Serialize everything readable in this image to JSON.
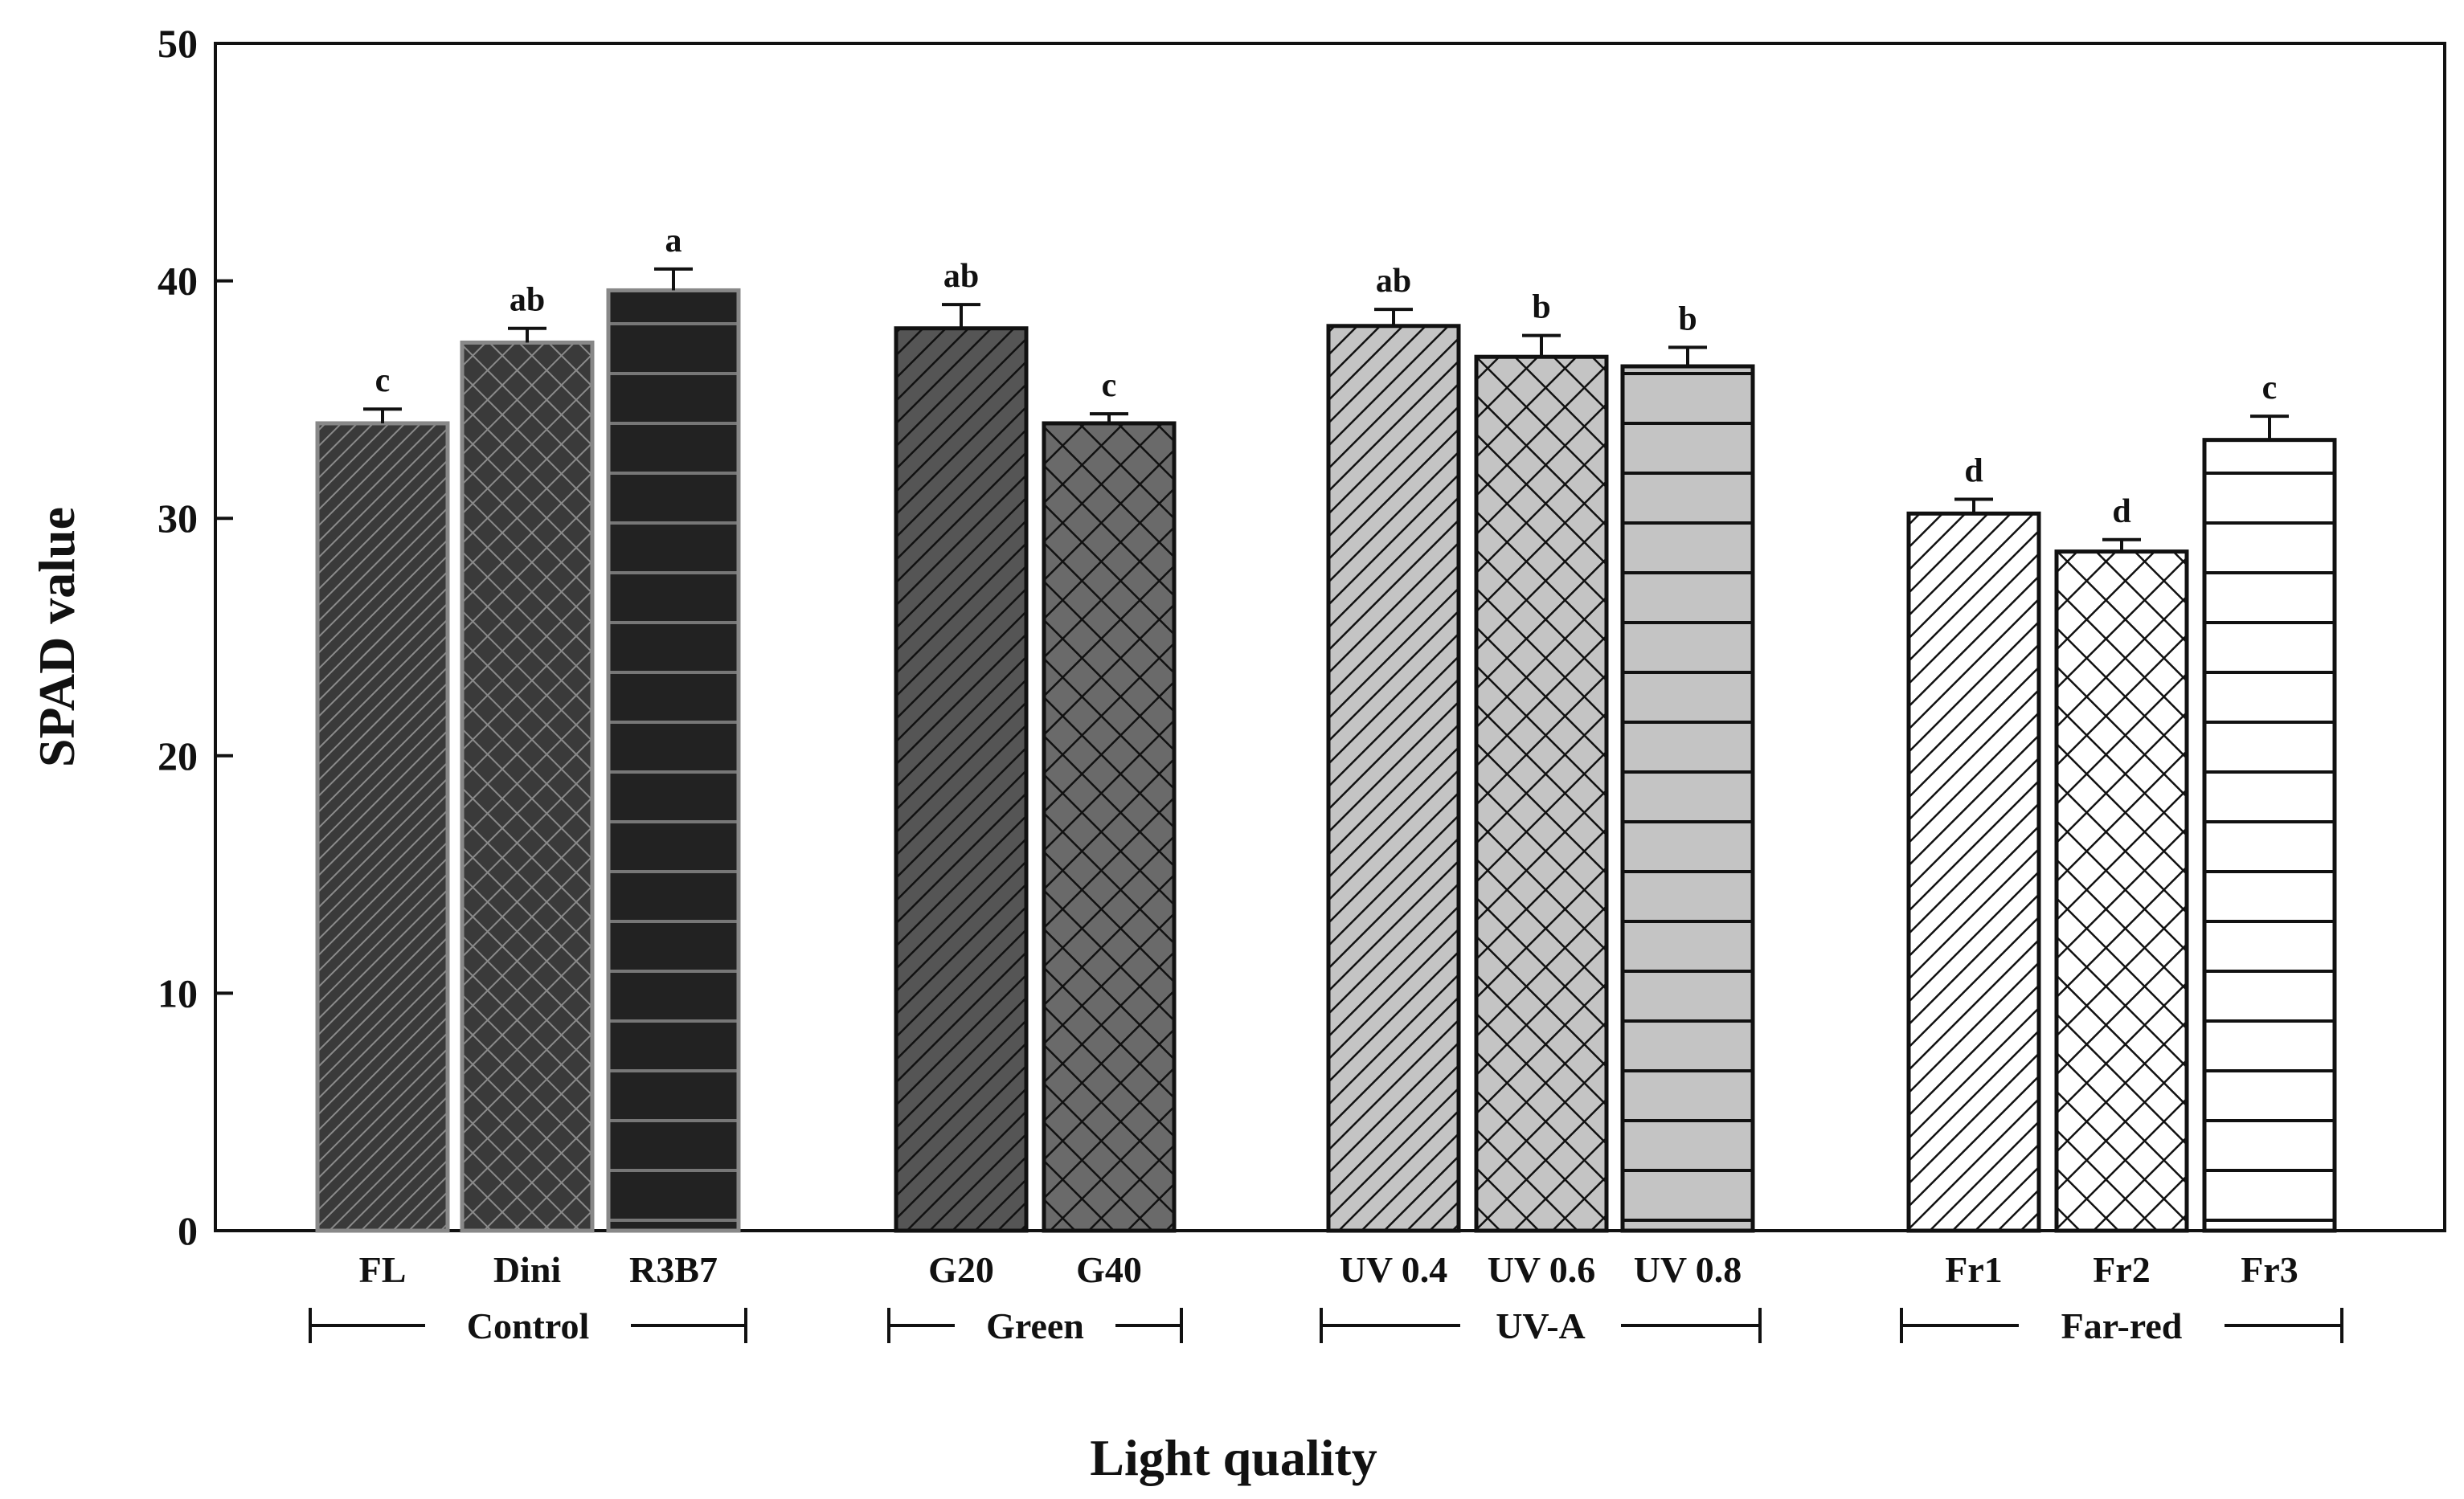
{
  "chart_data": {
    "type": "bar",
    "title": "",
    "xlabel": "Light quality",
    "ylabel": "SPAD value",
    "ylim": [
      0,
      50
    ],
    "yticks": [
      0,
      10,
      20,
      30,
      40,
      50
    ],
    "grid": false,
    "legend": "none",
    "bars": [
      {
        "category": "FL",
        "value": 34.0,
        "error": 0.6,
        "sig": "c",
        "group": "Control",
        "pattern": "diag-dense",
        "color": "#3a3a3a"
      },
      {
        "category": "Dini",
        "value": 37.4,
        "error": 0.6,
        "sig": "ab",
        "group": "Control",
        "pattern": "cross",
        "color": "#3a3a3a"
      },
      {
        "category": "R3B7",
        "value": 39.6,
        "error": 0.9,
        "sig": "a",
        "group": "Control",
        "pattern": "horizontal",
        "color": "#222222"
      },
      {
        "category": "G20",
        "value": 38.0,
        "error": 1.0,
        "sig": "ab",
        "group": "Green",
        "pattern": "diag-wide",
        "color": "#555555"
      },
      {
        "category": "G40",
        "value": 34.0,
        "error": 0.4,
        "sig": "c",
        "group": "Green",
        "pattern": "cross",
        "color": "#666666"
      },
      {
        "category": "UV 0.4",
        "value": 38.1,
        "error": 0.7,
        "sig": "ab",
        "group": "UV-A",
        "pattern": "diag-wide",
        "color": "#c4c4c4"
      },
      {
        "category": "UV 0.6",
        "value": 36.8,
        "error": 0.9,
        "sig": "b",
        "group": "UV-A",
        "pattern": "cross",
        "color": "#c4c4c4"
      },
      {
        "category": "UV 0.8",
        "value": 36.4,
        "error": 0.8,
        "sig": "b",
        "group": "UV-A",
        "pattern": "horizontal",
        "color": "#c4c4c4"
      },
      {
        "category": "Fr1",
        "value": 30.2,
        "error": 0.6,
        "sig": "d",
        "group": "Far-red",
        "pattern": "diag-wide",
        "color": "#ffffff"
      },
      {
        "category": "Fr2",
        "value": 28.6,
        "error": 0.5,
        "sig": "d",
        "group": "Far-red",
        "pattern": "cross",
        "color": "#ffffff"
      },
      {
        "category": "Fr3",
        "value": 33.3,
        "error": 1.0,
        "sig": "c",
        "group": "Far-red",
        "pattern": "horizontal",
        "color": "#ffffff"
      }
    ],
    "groups": [
      {
        "name": "Control",
        "first": 0,
        "last": 2
      },
      {
        "name": "Green",
        "first": 3,
        "last": 4
      },
      {
        "name": "UV-A",
        "first": 5,
        "last": 7
      },
      {
        "name": "Far-red",
        "first": 8,
        "last": 10
      }
    ]
  }
}
